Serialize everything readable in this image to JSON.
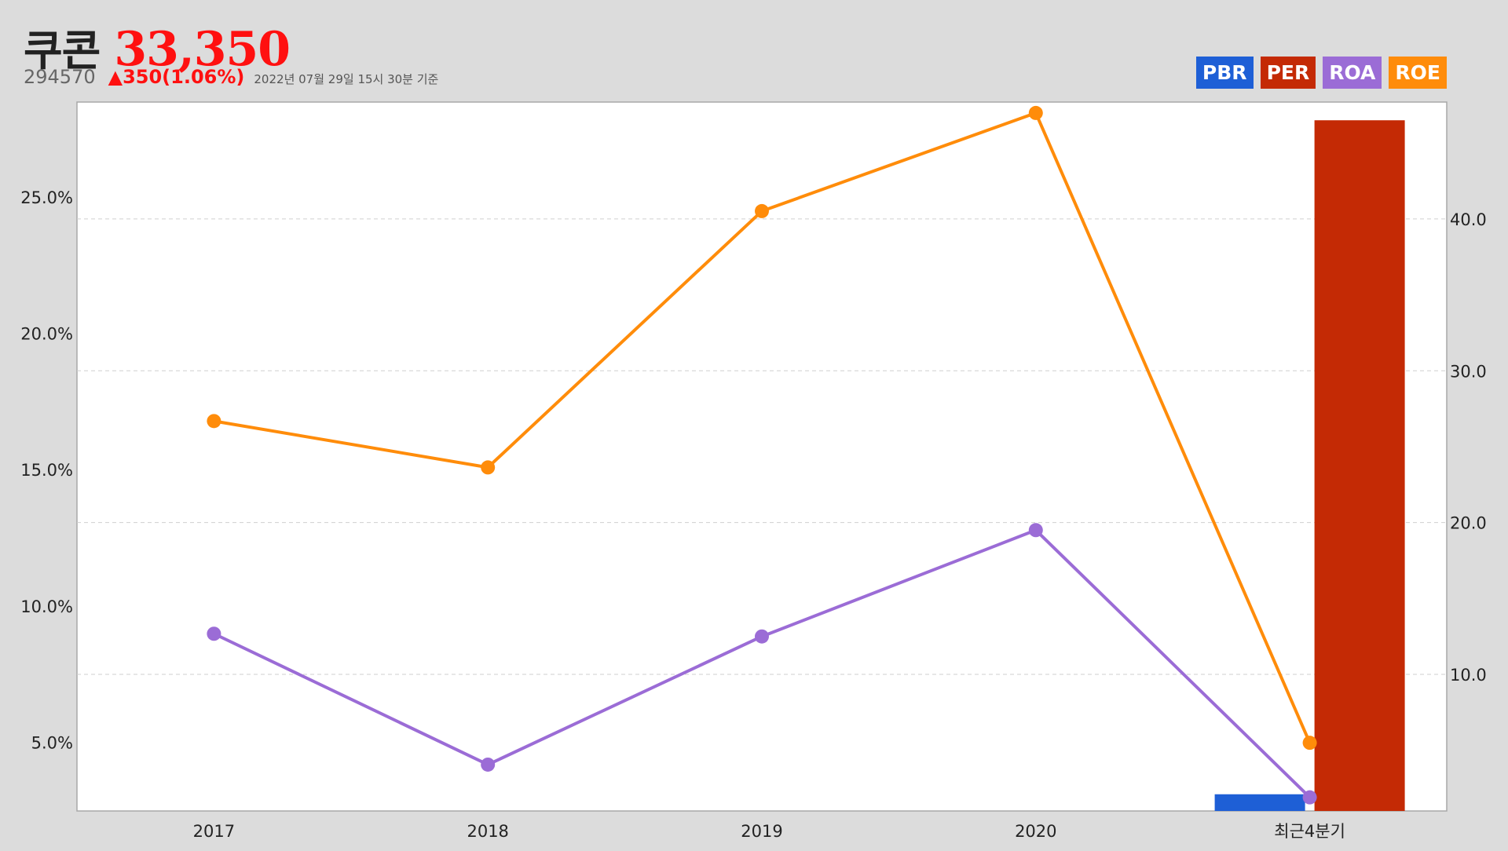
{
  "header": {
    "name": "쿠콘",
    "price": "33,350",
    "code": "294570",
    "change": "▲350(1.06%)",
    "timestamp": "2022년 07월 29일 15시 30분 기준"
  },
  "colors": {
    "PBR": "#1e5fd6",
    "PER": "#c42a05",
    "ROA": "#9b6cd6",
    "ROE": "#ff8c0a",
    "price": "#ff1010"
  },
  "legend": [
    {
      "label": "PBR",
      "color": "#1e5fd6"
    },
    {
      "label": "PER",
      "color": "#c42a05"
    },
    {
      "label": "ROA",
      "color": "#9b6cd6"
    },
    {
      "label": "ROE",
      "color": "#ff8c0a"
    }
  ],
  "chart_data": {
    "type": "line",
    "categories": [
      "2017",
      "2018",
      "2019",
      "2020",
      "최근4분기"
    ],
    "left_axis": {
      "ticks": [
        "5.0%",
        "10.0%",
        "15.0%",
        "20.0%",
        "25.0%"
      ],
      "range": [
        3.0,
        29.0
      ]
    },
    "right_axis": {
      "ticks": [
        "10.0",
        "20.0",
        "30.0",
        "40.0"
      ],
      "range": [
        1.0,
        47.7
      ]
    },
    "grid": true,
    "legend_position": "top-right",
    "series": [
      {
        "name": "ROE",
        "axis": "left",
        "kind": "line",
        "values": [
          17.3,
          15.6,
          25.0,
          28.6,
          5.5
        ]
      },
      {
        "name": "ROA",
        "axis": "left",
        "kind": "line",
        "values": [
          9.5,
          4.7,
          9.4,
          13.3,
          3.5
        ]
      },
      {
        "name": "PBR",
        "axis": "right",
        "kind": "bar",
        "values": [
          null,
          null,
          null,
          null,
          2.1
        ]
      },
      {
        "name": "PER",
        "axis": "right",
        "kind": "bar",
        "values": [
          null,
          null,
          null,
          null,
          46.5
        ]
      }
    ]
  }
}
